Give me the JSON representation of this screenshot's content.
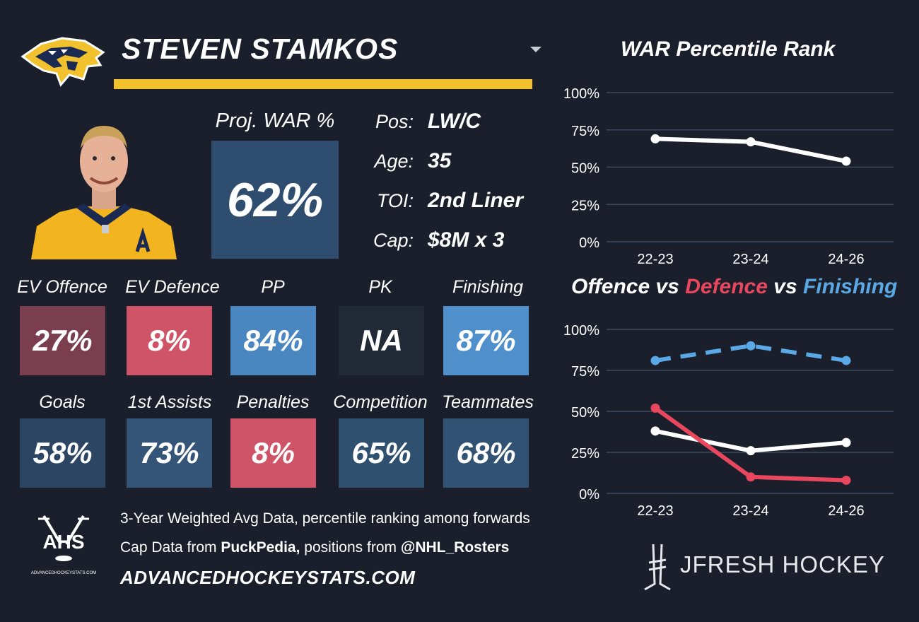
{
  "player": {
    "name": "STEVEN STAMKOS",
    "proj_war_label": "Proj. WAR %",
    "proj_war_value": "62%"
  },
  "info": [
    {
      "label": "Pos:",
      "value": "LW/C"
    },
    {
      "label": "Age:",
      "value": "35"
    },
    {
      "label": "TOI:",
      "value": "2nd Liner"
    },
    {
      "label": "Cap:",
      "value": "$8M x 3"
    }
  ],
  "tiles": [
    {
      "label": "EV Offence",
      "value": "27%",
      "color": "#7a3e4f"
    },
    {
      "label": "EV Defence",
      "value": "8%",
      "color": "#cf5468"
    },
    {
      "label": "PP",
      "value": "84%",
      "color": "#4a86c0"
    },
    {
      "label": "PK",
      "value": "NA",
      "color": "#222a38"
    },
    {
      "label": "Finishing",
      "value": "87%",
      "color": "#4f8fcb"
    },
    {
      "label": "Goals",
      "value": "58%",
      "color": "#2c4563"
    },
    {
      "label": "1st Assists",
      "value": "73%",
      "color": "#345578"
    },
    {
      "label": "Penalties",
      "value": "8%",
      "color": "#cf5468"
    },
    {
      "label": "Competition",
      "value": "65%",
      "color": "#30506f"
    },
    {
      "label": "Teammates",
      "value": "68%",
      "color": "#315272"
    }
  ],
  "footer": {
    "line1": "3-Year Weighted Avg Data, percentile ranking among forwards",
    "line2_pre": "Cap Data from ",
    "line2_b1": "PuckPedia,",
    "line2_mid": " positions from ",
    "line2_b2": "@NHL_Rosters",
    "site": "ADVANCEDHOCKEYSTATS.COM",
    "ahs_logo_text": "AHS",
    "ahs_logo_sub": "ADVANCEDHOCKEYSTATS.COM",
    "brand": "JFRESH HOCKEY"
  },
  "colors": {
    "accent_yellow": "#f2c12e",
    "offence": "#ffffff",
    "defence": "#e8475e",
    "finishing": "#5aa9e6",
    "background": "#1a1f2b"
  },
  "chart_data": [
    {
      "type": "line",
      "title": "WAR Percentile Rank",
      "x": [
        "22-23",
        "23-24",
        "24-26"
      ],
      "y_ticks": [
        "100%",
        "75%",
        "50%",
        "25%",
        "0%"
      ],
      "ylim": [
        0,
        100
      ],
      "grid": true,
      "series": [
        {
          "values": [
            69,
            67,
            54
          ],
          "color": "#ffffff",
          "dash": false
        }
      ]
    },
    {
      "type": "line",
      "title_parts": [
        "Offence",
        " vs ",
        "Defence",
        " vs ",
        "Finishing"
      ],
      "x": [
        "22-23",
        "23-24",
        "24-26"
      ],
      "y_ticks": [
        "100%",
        "75%",
        "50%",
        "25%",
        "0%"
      ],
      "ylim": [
        0,
        100
      ],
      "grid": true,
      "series": [
        {
          "name": "Offence",
          "values": [
            38,
            26,
            31
          ],
          "color": "#ffffff",
          "dash": false
        },
        {
          "name": "Defence",
          "values": [
            52,
            10,
            8
          ],
          "color": "#e8475e",
          "dash": false
        },
        {
          "name": "Finishing",
          "values": [
            81,
            90,
            81
          ],
          "color": "#5aa9e6",
          "dash": true
        }
      ]
    }
  ]
}
